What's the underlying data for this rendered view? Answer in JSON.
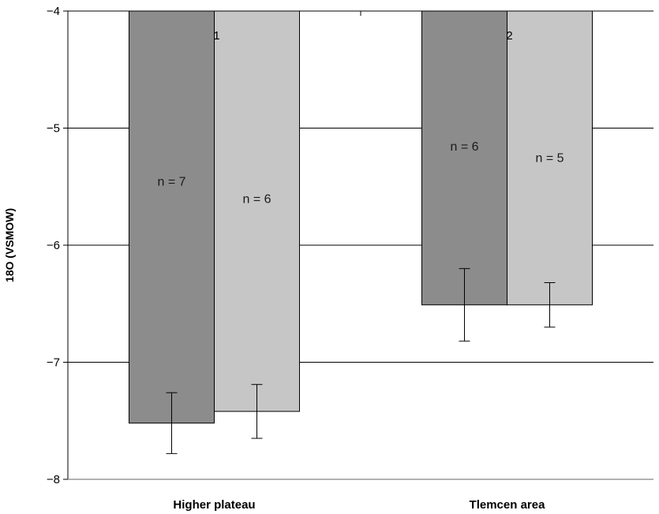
{
  "chart_data": {
    "type": "bar",
    "ylabel": "18O (VSMOW)",
    "ylim": [
      -8,
      -4
    ],
    "yticks": [
      "−4",
      "−5",
      "−6",
      "−7",
      "−8"
    ],
    "ytick_values": [
      -4,
      -5,
      -6,
      -7,
      -8
    ],
    "grid": true,
    "categories": [
      "Higher plateau",
      "Tlemcen area"
    ],
    "category_numbers": [
      "1",
      "2"
    ],
    "series": [
      {
        "color": "#8c8c8c",
        "values": [
          -7.52,
          -6.51
        ],
        "error": [
          0.26,
          0.31
        ],
        "counts": [
          "n = 7",
          "n = 6"
        ],
        "count_values": [
          -5.45,
          -5.15
        ]
      },
      {
        "color": "#c6c6c6",
        "values": [
          -7.42,
          -6.51
        ],
        "error": [
          0.23,
          0.19
        ],
        "counts": [
          "n = 6",
          "n = 5"
        ],
        "count_values": [
          -5.6,
          -5.25
        ]
      }
    ]
  }
}
